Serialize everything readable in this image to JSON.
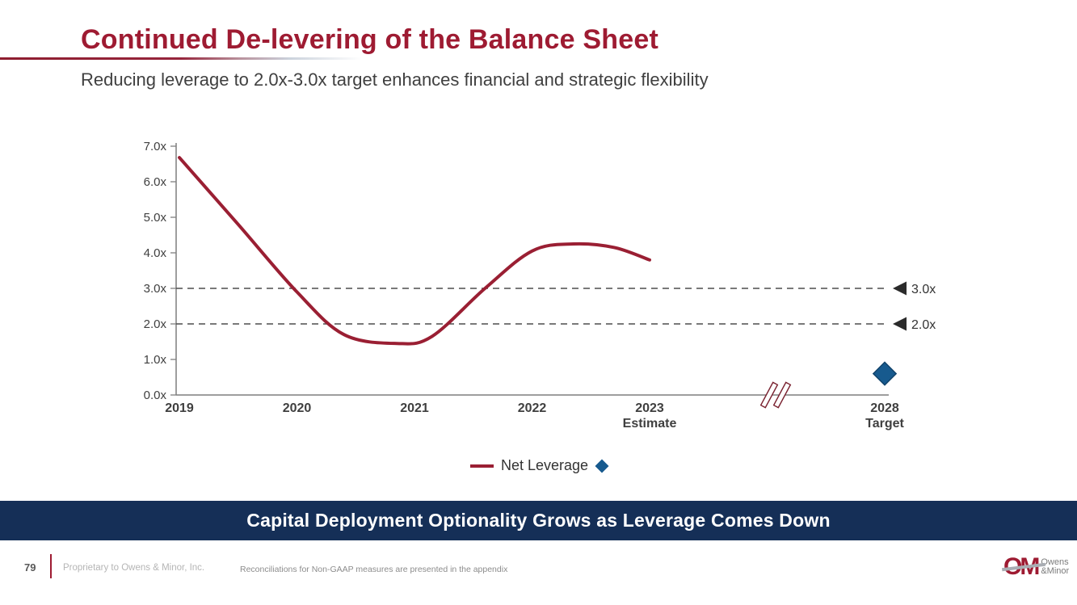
{
  "slide": {
    "title": "Continued De-levering of the Balance Sheet",
    "subtitle": "Reducing leverage to 2.0x-3.0x target enhances financial and strategic flexibility",
    "banner": "Capital Deployment Optionality Grows as Leverage Comes Down",
    "footer": {
      "page_number": "79",
      "proprietary": "Proprietary to Owens & Minor, Inc.",
      "note": "Reconciliations for Non-GAAP measures are presented in the appendix"
    },
    "logo": {
      "monogram": "OM",
      "line1": "Owens",
      "line2": "&Minor"
    }
  },
  "chart_data": {
    "type": "line",
    "title": "",
    "xlabel": "",
    "ylabel": "",
    "ylim": [
      0,
      7
    ],
    "y_ticks": [
      "0.0x",
      "1.0x",
      "2.0x",
      "3.0x",
      "4.0x",
      "5.0x",
      "6.0x",
      "7.0x"
    ],
    "grid": false,
    "axis_break_between": [
      "2023 Estimate",
      "2028 Target"
    ],
    "legend_position": "bottom-center",
    "series": [
      {
        "name": "Net Leverage",
        "color": "#9A1F33",
        "x": [
          2019,
          2020,
          2021,
          2022,
          2023
        ],
        "values": [
          6.7,
          2.9,
          1.5,
          4.0,
          3.8
        ],
        "curve_samples": [
          [
            2019.0,
            6.68
          ],
          [
            2019.5,
            4.8
          ],
          [
            2020.0,
            2.9
          ],
          [
            2020.4,
            1.7
          ],
          [
            2020.85,
            1.45
          ],
          [
            2021.15,
            1.65
          ],
          [
            2021.6,
            3.0
          ],
          [
            2022.0,
            4.05
          ],
          [
            2022.35,
            4.25
          ],
          [
            2022.7,
            4.15
          ],
          [
            2023.0,
            3.8
          ]
        ]
      }
    ],
    "target_point": {
      "x": 2028,
      "value": 0.6,
      "color": "#175A8E",
      "edge_color": "#12446C",
      "marker": "diamond"
    },
    "reference_lines": [
      {
        "value": 3.0,
        "label": "3.0x",
        "marker": "left-triangle-icon"
      },
      {
        "value": 2.0,
        "label": "2.0x",
        "marker": "left-triangle-icon"
      }
    ],
    "x_axis": {
      "categories": [
        {
          "x": 2019,
          "label": "2019"
        },
        {
          "x": 2020,
          "label": "2020"
        },
        {
          "x": 2021,
          "label": "2021"
        },
        {
          "x": 2022,
          "label": "2022"
        },
        {
          "x": 2023,
          "label": "2023",
          "sublabel": "Estimate"
        },
        {
          "x": 2028,
          "label": "2028",
          "sublabel": "Target"
        }
      ]
    },
    "colors": {
      "axis": "#7F7F7F",
      "dashed_line": "#4D4D4D",
      "triangle": "#2B2B2B",
      "break_mark_stroke": "#7A2230"
    }
  }
}
